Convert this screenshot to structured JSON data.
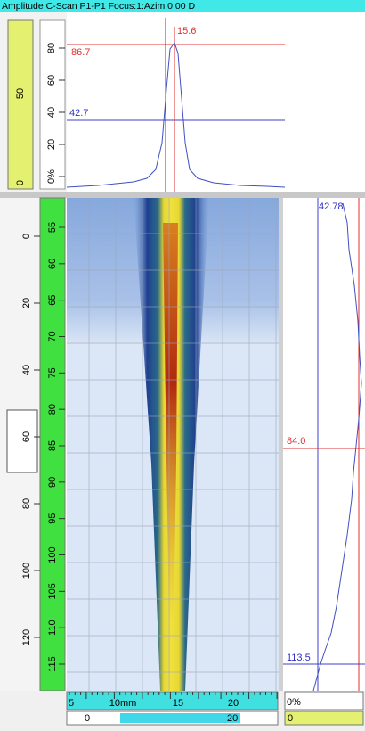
{
  "title_bar": "Amplitude C-Scan P1-P1 Focus:1:Azim 0.00 D",
  "top_plot": {
    "color_bar_labels": [
      "0",
      "50"
    ],
    "amplitude_scale": [
      "0%",
      "20",
      "40",
      "60",
      "80"
    ],
    "cursor_label": "15.6",
    "upper_gate_label": "86.7",
    "lower_gate_label": "42.7"
  },
  "scan_axis": {
    "outer_ticks": [
      "0",
      "20",
      "40",
      "60",
      "80",
      "100",
      "120"
    ],
    "inner_ticks": [
      "55",
      "60",
      "65",
      "70",
      "75",
      "80",
      "85",
      "90",
      "95",
      "100",
      "105",
      "110",
      "115"
    ]
  },
  "side_plot": {
    "top_label": "42.78",
    "cursor_label": "84.0",
    "gate_label": "113.5"
  },
  "bottom_axis": {
    "ticks": [
      "5",
      "10mm",
      "15",
      "20"
    ],
    "scroll_labels": [
      "0",
      "20"
    ]
  },
  "side_footer": {
    "scale": "0%",
    "value": "0"
  }
}
